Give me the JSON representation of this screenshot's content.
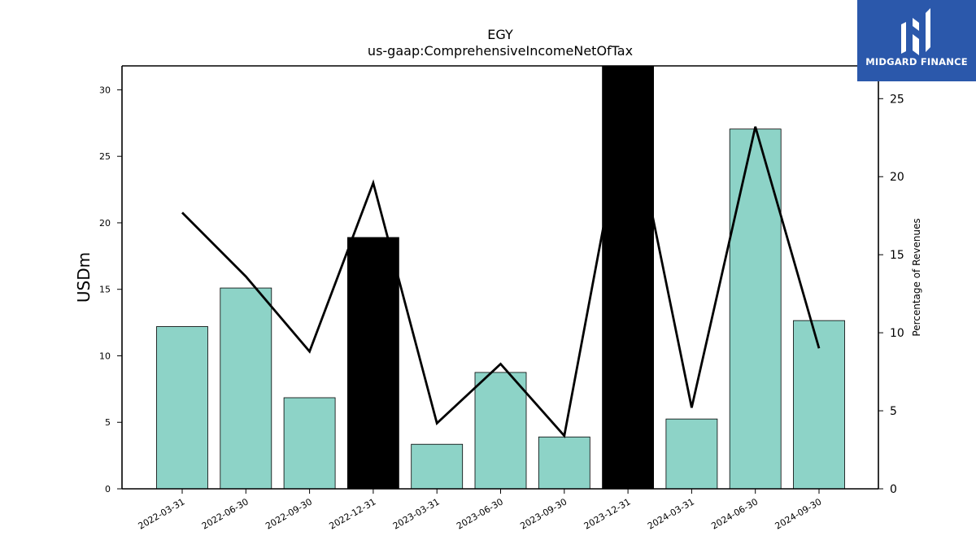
{
  "brand": {
    "name": "MIDGARD FINANCE",
    "icon": "midgard-logo-icon",
    "color": "#2b58ab"
  },
  "chart_data": {
    "type": "bar",
    "title": "EGY",
    "subtitle": "us-gaap:ComprehensiveIncomeNetOfTax",
    "ylabel": "USDm",
    "y2label": "Percentage of Revenues",
    "ylim": [
      0,
      31.8
    ],
    "y2lim": [
      0,
      27.1
    ],
    "yticks": [
      0,
      5,
      10,
      15,
      20,
      25,
      30
    ],
    "y2ticks": [
      0,
      5,
      10,
      15,
      20,
      25
    ],
    "categories": [
      "2022-03-31",
      "2022-06-30",
      "2022-09-30",
      "2022-12-31",
      "2023-03-31",
      "2023-06-30",
      "2023-09-30",
      "2023-12-31",
      "2024-03-31",
      "2024-06-30",
      "2024-09-30"
    ],
    "series": [
      {
        "type": "bar",
        "axis": "left",
        "values": [
          12.2,
          15.1,
          6.85,
          18.9,
          3.35,
          8.75,
          3.9,
          31.8,
          5.25,
          27.05,
          12.65
        ],
        "colors": [
          "#8dd3c7",
          "#8dd3c7",
          "#8dd3c7",
          "#000000",
          "#8dd3c7",
          "#8dd3c7",
          "#8dd3c7",
          "#000000",
          "#8dd3c7",
          "#8dd3c7",
          "#8dd3c7"
        ]
      },
      {
        "type": "line",
        "axis": "right",
        "color": "#000000",
        "values": [
          17.7,
          13.6,
          8.8,
          19.6,
          4.2,
          8.0,
          3.4,
          25.2,
          5.2,
          23.2,
          9.0
        ]
      }
    ],
    "grid": false,
    "legend": "none"
  }
}
